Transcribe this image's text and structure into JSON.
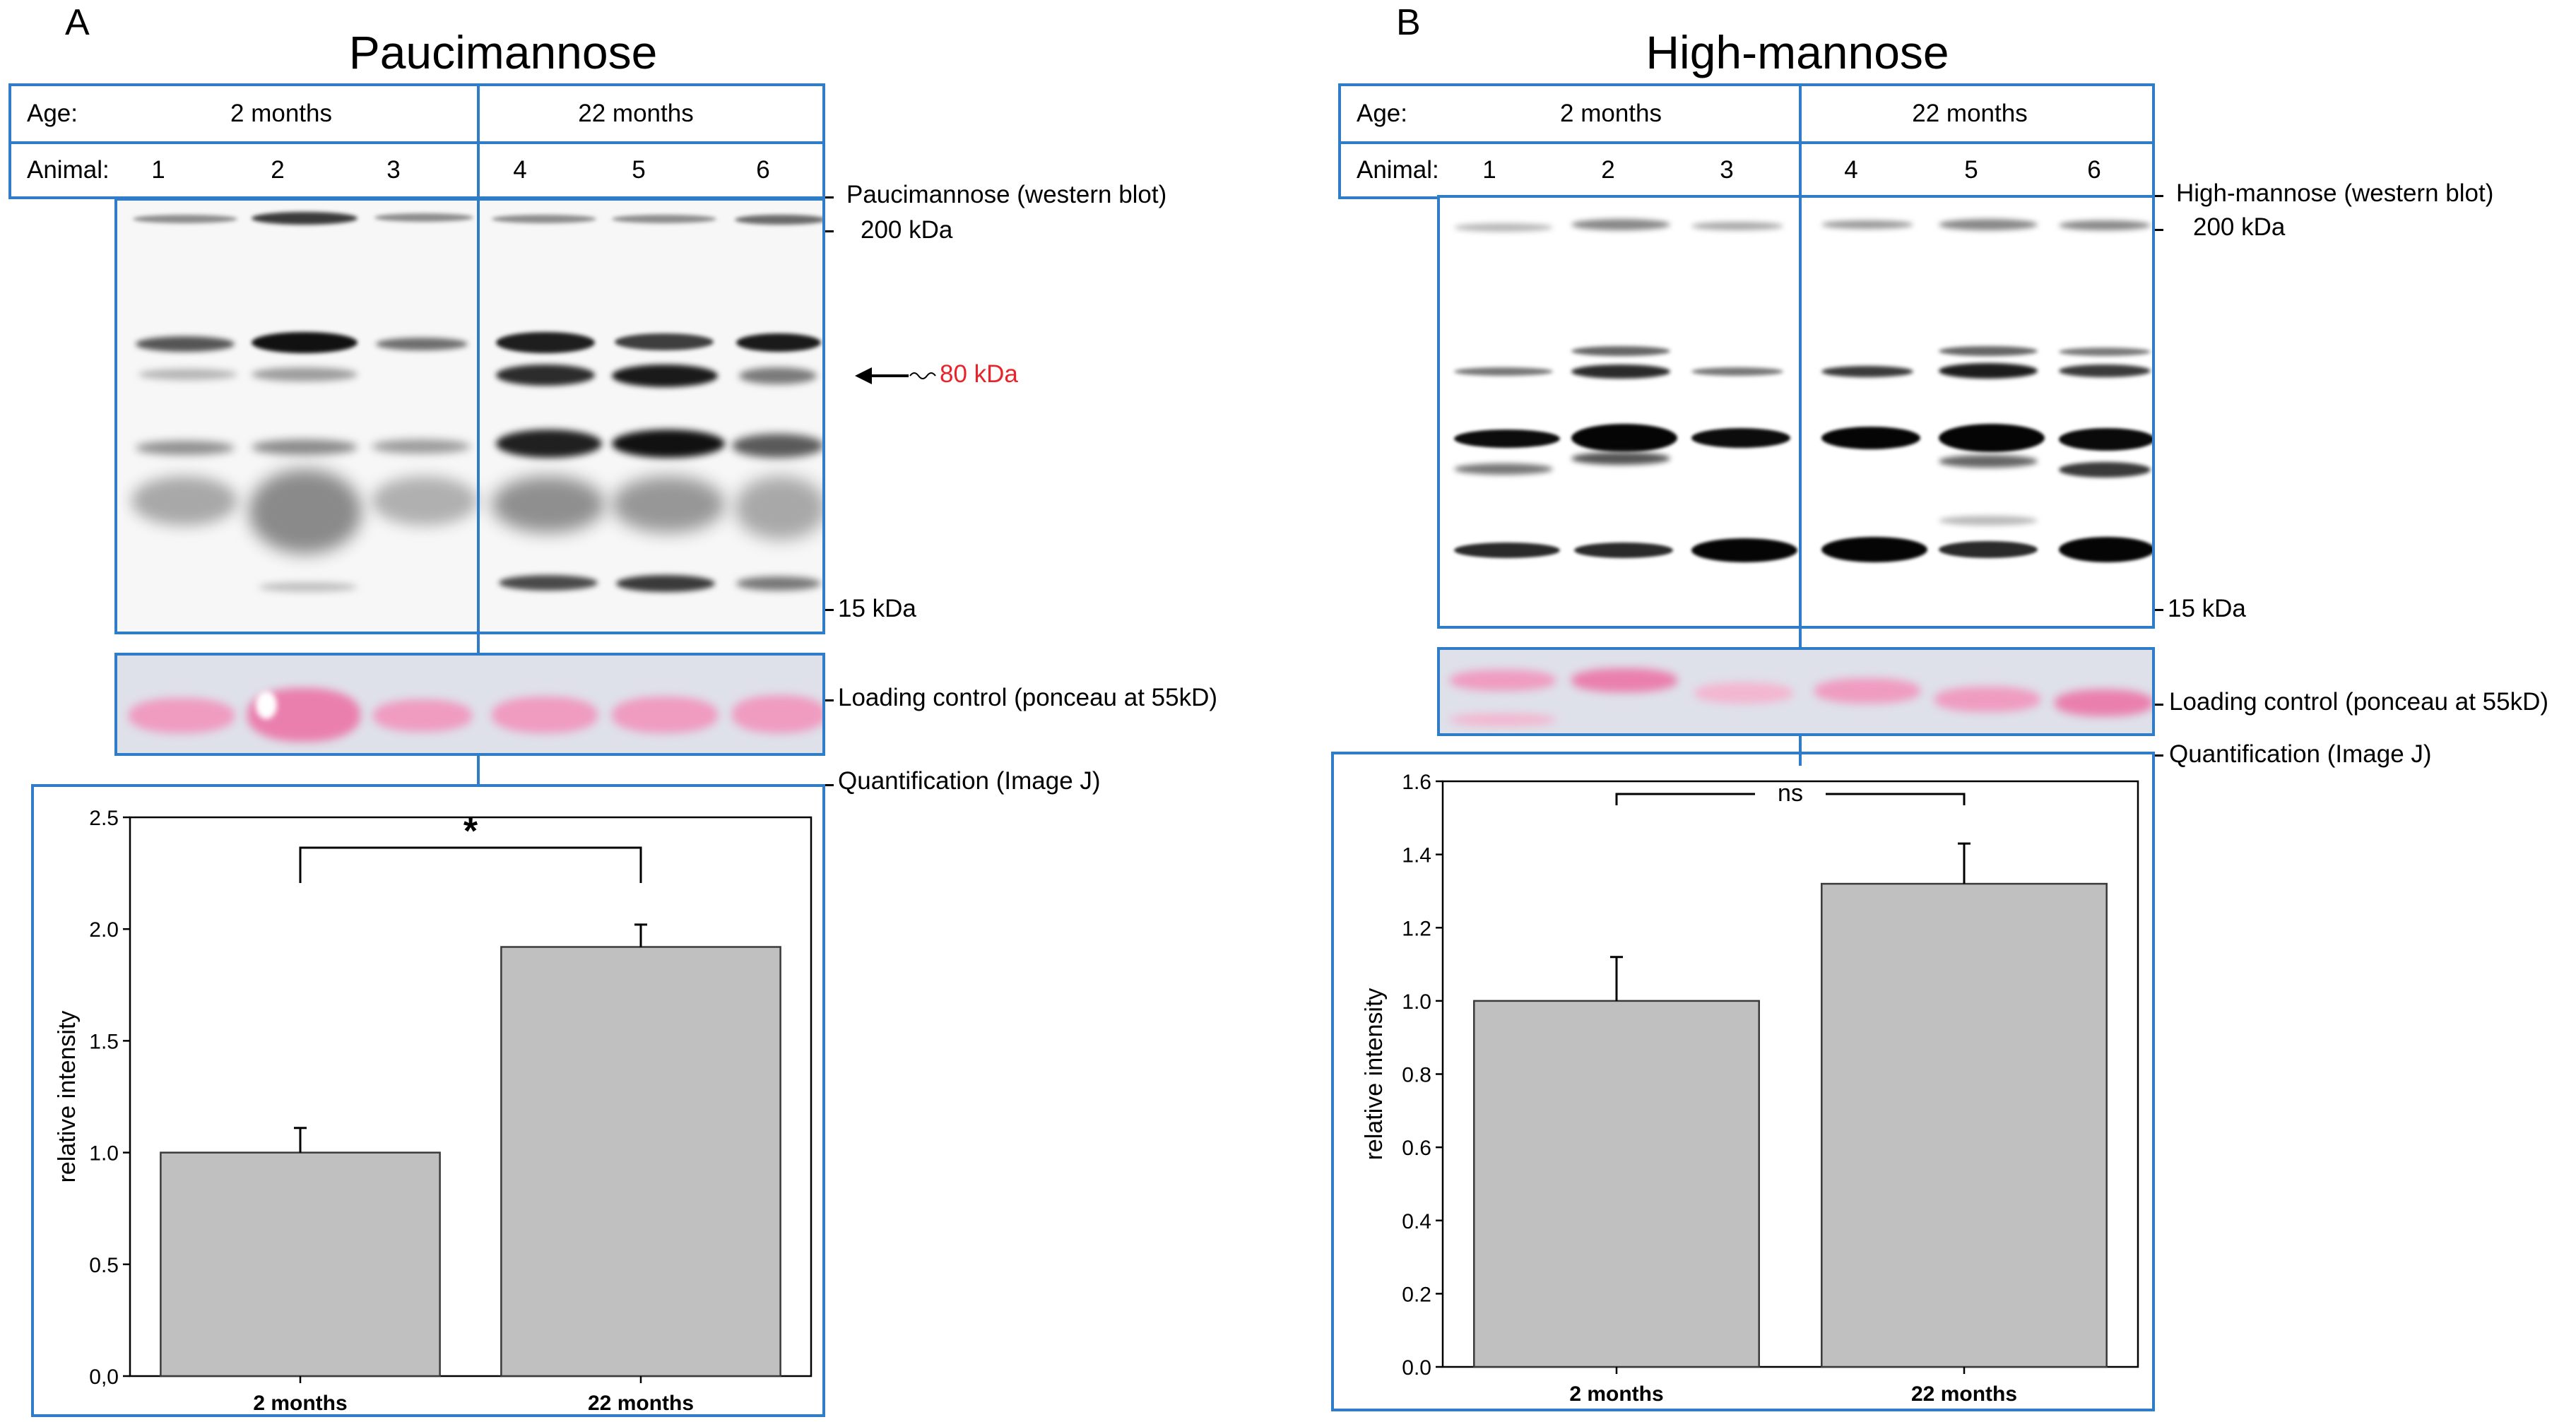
{
  "panels": [
    {
      "letter": "A",
      "title": "Paucimannose",
      "age_label": "Age:",
      "age_groups": [
        "2 months",
        "22 months"
      ],
      "animal_label": "Animal:",
      "animals": [
        "1",
        "2",
        "3",
        "4",
        "5",
        "6"
      ],
      "blot_label": "Paucimannose (western blot)",
      "marker_top": "200 kDa",
      "marker_bottom": "15 kDa",
      "arrow_label": "80 kDa",
      "loading_label": "Loading control (ponceau at 55kD)",
      "quant_label": "Quantification (Image J)",
      "chart_data": {
        "type": "bar",
        "categories": [
          "2 months",
          "22 months"
        ],
        "values": [
          1.0,
          1.92
        ],
        "errors": [
          0.11,
          0.1
        ],
        "ylabel": "relative intensity",
        "ylim": [
          0,
          2.5
        ],
        "yticks": [
          "0,0",
          "0.5",
          "1.0",
          "1.5",
          "2.0",
          "2.5"
        ],
        "significance": "*",
        "bar_color": "#c0c0c0"
      }
    },
    {
      "letter": "B",
      "title": "High-mannose",
      "age_label": "Age:",
      "age_groups": [
        "2 months",
        "22 months"
      ],
      "animal_label": "Animal:",
      "animals": [
        "1",
        "2",
        "3",
        "4",
        "5",
        "6"
      ],
      "blot_label": "High-mannose (western blot)",
      "marker_top": "200 kDa",
      "marker_bottom": "15 kDa",
      "loading_label": "Loading control (ponceau at 55kD)",
      "quant_label": "Quantification (Image J)",
      "chart_data": {
        "type": "bar",
        "categories": [
          "2 months",
          "22 months"
        ],
        "values": [
          1.0,
          1.32
        ],
        "errors": [
          0.12,
          0.11
        ],
        "ylabel": "relative intensity",
        "ylim": [
          0,
          1.6
        ],
        "yticks": [
          "0.0",
          "0.2",
          "0.4",
          "0.6",
          "0.8",
          "1.0",
          "1.2",
          "1.4",
          "1.6"
        ],
        "significance": "ns",
        "bar_color": "#c0c0c0"
      }
    }
  ],
  "colors": {
    "frame": "#2f7dc8",
    "arrow_label": "#e8242a",
    "ponceau": "#ef9cc0"
  }
}
